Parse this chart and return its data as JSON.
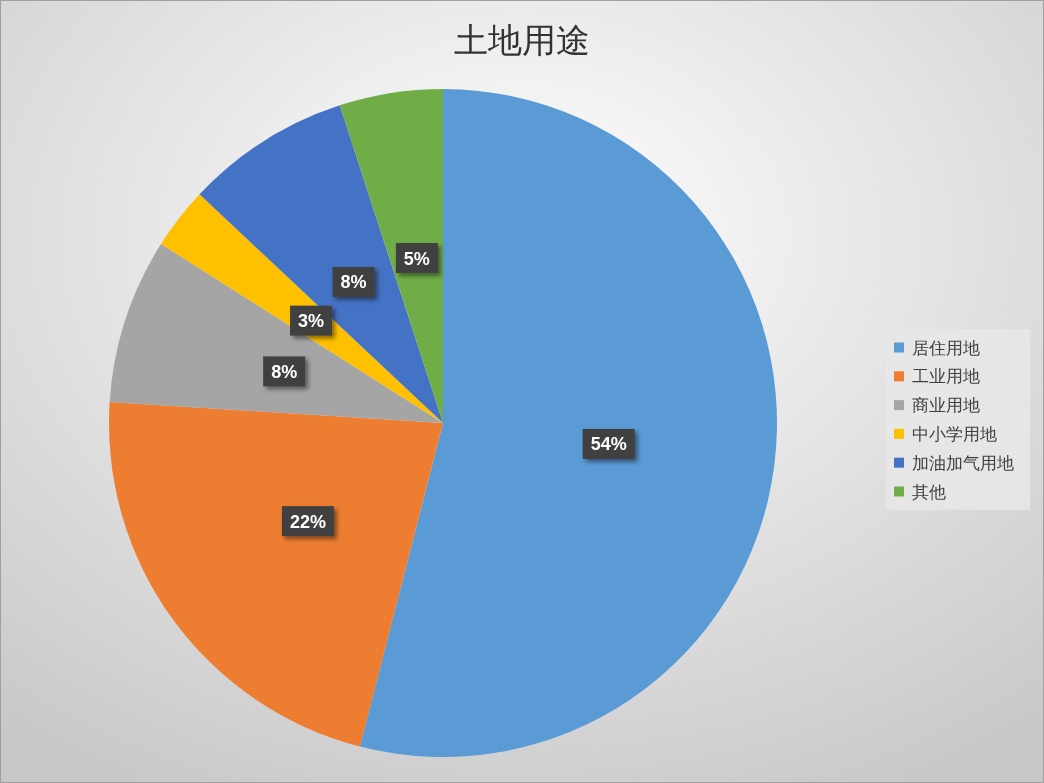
{
  "chart_data": {
    "type": "pie",
    "title": "土地用途",
    "categories": [
      "居住用地",
      "工业用地",
      "商业用地",
      "中小学用地",
      "加油加气用地",
      "其他"
    ],
    "values": [
      54,
      22,
      8,
      3,
      8,
      5
    ],
    "colors": [
      "#5b9bd5",
      "#ed7d31",
      "#a5a5a5",
      "#ffc000",
      "#4472c4",
      "#70ad47"
    ],
    "value_labels": [
      "54%",
      "22%",
      "8%",
      "3%",
      "8%",
      "5%"
    ],
    "legend": "right"
  }
}
